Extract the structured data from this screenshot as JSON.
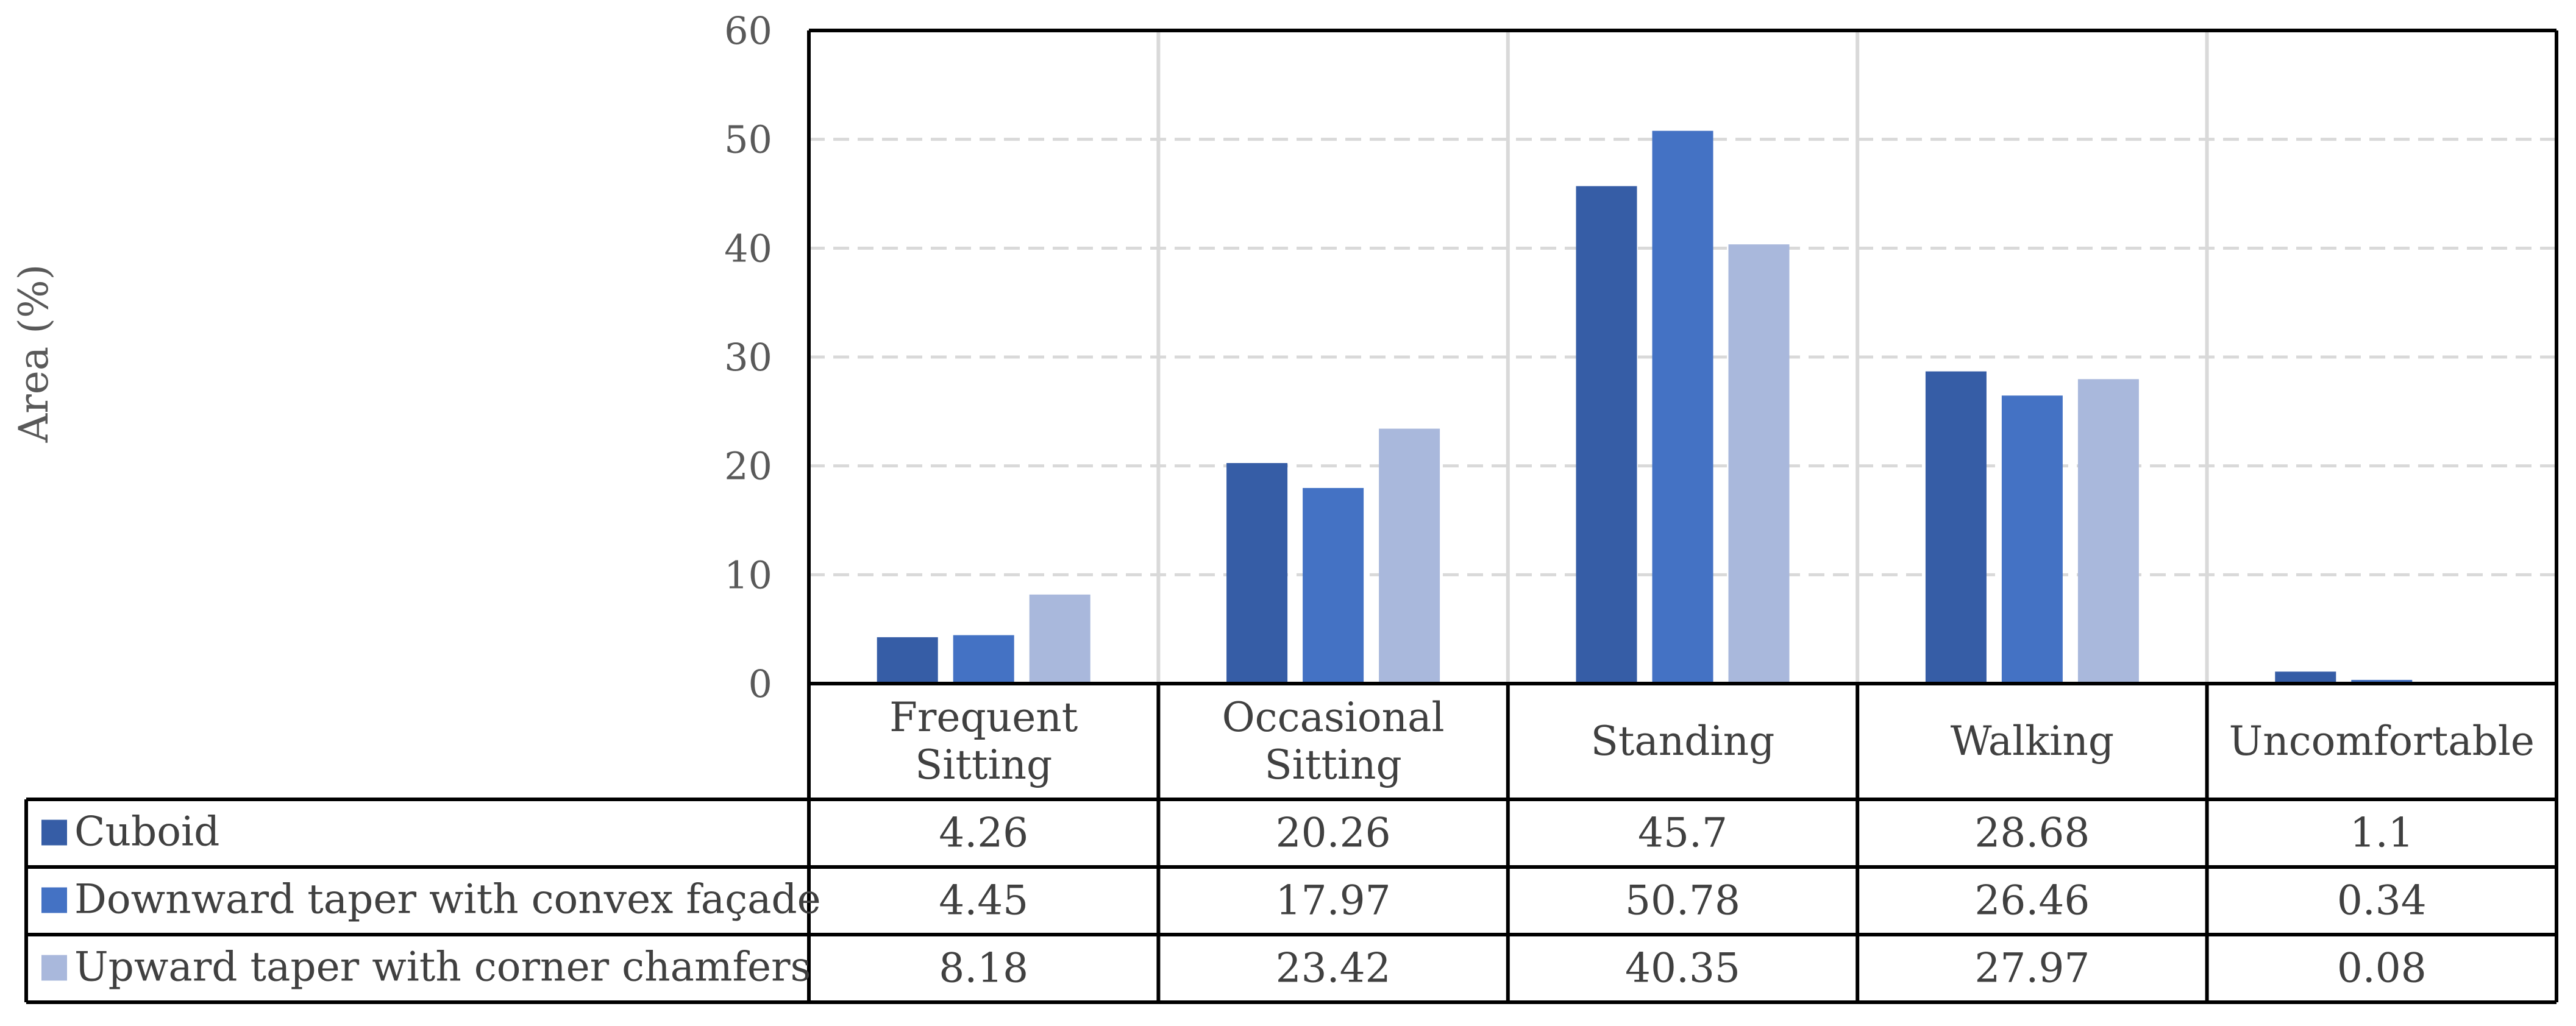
{
  "chart_data": {
    "type": "bar",
    "title": "",
    "xlabel": "",
    "ylabel": "Area (%)",
    "ylim": [
      0,
      60
    ],
    "yticks": [
      0,
      10,
      20,
      30,
      40,
      50,
      60
    ],
    "grid": true,
    "legend_placement": "data-table",
    "categories": [
      [
        "Frequent",
        "Sitting"
      ],
      [
        "Occasional",
        "Sitting"
      ],
      [
        "Standing"
      ],
      [
        "Walking"
      ],
      [
        "Uncomfortable"
      ]
    ],
    "series": [
      {
        "name": "Cuboid",
        "color": "#365da6",
        "values": [
          4.26,
          20.26,
          45.7,
          28.68,
          1.1
        ],
        "labels": [
          "4.26",
          "20.26",
          "45.7",
          "28.68",
          "1.1"
        ]
      },
      {
        "name": "Downward taper with convex façade",
        "color": "#4472c4",
        "values": [
          4.45,
          17.97,
          50.78,
          26.46,
          0.34
        ],
        "labels": [
          "4.45",
          "17.97",
          "50.78",
          "26.46",
          "0.34"
        ]
      },
      {
        "name": "Upward taper with corner chamfers",
        "color": "#a9b8dc",
        "values": [
          8.18,
          23.42,
          40.35,
          27.97,
          0.08
        ],
        "labels": [
          "8.18",
          "23.42",
          "40.35",
          "27.97",
          "0.08"
        ]
      }
    ]
  }
}
